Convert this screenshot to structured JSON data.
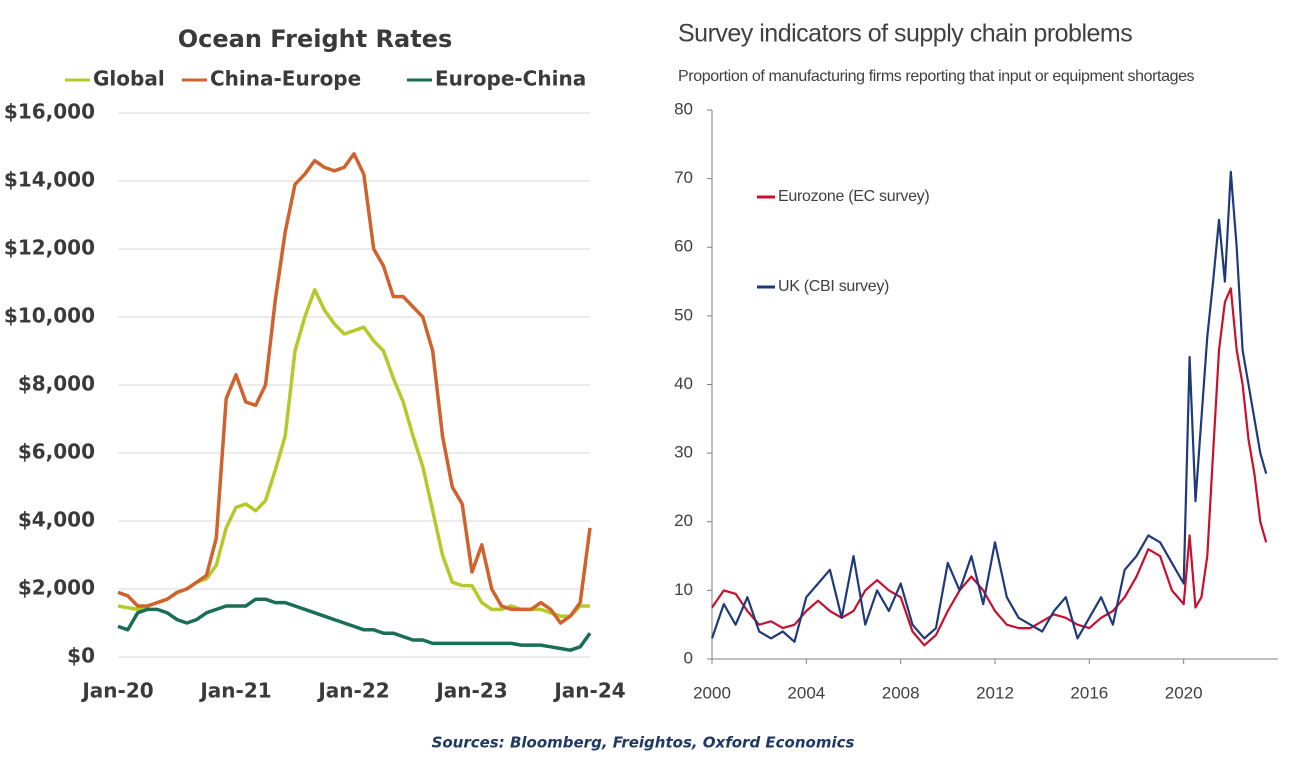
{
  "chart_data": [
    {
      "type": "line",
      "title": "Ocean Freight Rates",
      "x": [
        "2020-01",
        "2020-02",
        "2020-03",
        "2020-04",
        "2020-05",
        "2020-06",
        "2020-07",
        "2020-08",
        "2020-09",
        "2020-10",
        "2020-11",
        "2020-12",
        "2021-01",
        "2021-02",
        "2021-03",
        "2021-04",
        "2021-05",
        "2021-06",
        "2021-07",
        "2021-08",
        "2021-09",
        "2021-10",
        "2021-11",
        "2021-12",
        "2022-01",
        "2022-02",
        "2022-03",
        "2022-04",
        "2022-05",
        "2022-06",
        "2022-07",
        "2022-08",
        "2022-09",
        "2022-10",
        "2022-11",
        "2022-12",
        "2023-01",
        "2023-02",
        "2023-03",
        "2023-04",
        "2023-05",
        "2023-06",
        "2023-07",
        "2023-08",
        "2023-09",
        "2023-10",
        "2023-11",
        "2023-12",
        "2024-01"
      ],
      "series": [
        {
          "name": "Global",
          "color": "#b5c92a",
          "values": [
            1500,
            1450,
            1400,
            1500,
            1600,
            1700,
            1900,
            2000,
            2200,
            2300,
            2700,
            3800,
            4400,
            4500,
            4300,
            4600,
            5500,
            6500,
            9000,
            10000,
            10800,
            10200,
            9800,
            9500,
            9600,
            9700,
            9300,
            9000,
            8200,
            7500,
            6500,
            5600,
            4300,
            3000,
            2200,
            2100,
            2100,
            1600,
            1400,
            1400,
            1500,
            1400,
            1400,
            1400,
            1300,
            1200,
            1200,
            1500,
            1500
          ]
        },
        {
          "name": "China-Europe",
          "color": "#d0632d",
          "values": [
            1900,
            1800,
            1500,
            1500,
            1600,
            1700,
            1900,
            2000,
            2200,
            2400,
            3500,
            7600,
            8300,
            7500,
            7400,
            8000,
            10500,
            12500,
            13900,
            14200,
            14600,
            14400,
            14300,
            14400,
            14800,
            14200,
            12000,
            11500,
            10600,
            10600,
            10300,
            10000,
            9000,
            6500,
            5000,
            4500,
            2500,
            3300,
            2000,
            1500,
            1400,
            1400,
            1400,
            1600,
            1400,
            1000,
            1200,
            1600,
            3800
          ]
        },
        {
          "name": "Europe-China",
          "color": "#1a6e55",
          "values": [
            900,
            800,
            1300,
            1400,
            1400,
            1300,
            1100,
            1000,
            1100,
            1300,
            1400,
            1500,
            1500,
            1500,
            1700,
            1700,
            1600,
            1600,
            1500,
            1400,
            1300,
            1200,
            1100,
            1000,
            900,
            800,
            800,
            700,
            700,
            600,
            500,
            500,
            400,
            400,
            400,
            400,
            400,
            400,
            400,
            400,
            400,
            350,
            350,
            350,
            300,
            250,
            200,
            300,
            700
          ]
        }
      ],
      "ylim": [
        0,
        16000
      ],
      "yticks": [
        {
          "value": 0,
          "label": "$0"
        },
        {
          "value": 2000,
          "label": "$2,000"
        },
        {
          "value": 4000,
          "label": "$4,000"
        },
        {
          "value": 6000,
          "label": "$6,000"
        },
        {
          "value": 8000,
          "label": "$8,000"
        },
        {
          "value": 10000,
          "label": "$10,000"
        },
        {
          "value": 12000,
          "label": "$12,000"
        },
        {
          "value": 14000,
          "label": "$14,000"
        },
        {
          "value": 16000,
          "label": "$16,000"
        }
      ],
      "xticks": [
        {
          "value": "2020-01",
          "label": "Jan-20"
        },
        {
          "value": "2021-01",
          "label": "Jan-21"
        },
        {
          "value": "2022-01",
          "label": "Jan-22"
        },
        {
          "value": "2023-01",
          "label": "Jan-23"
        },
        {
          "value": "2024-01",
          "label": "Jan-24"
        }
      ],
      "grid": true,
      "legend": "top"
    },
    {
      "type": "line",
      "title": "Survey indicators of supply chain problems",
      "subtitle": "Proportion of manufacturing firms reporting that input or equipment shortages",
      "x": [
        2000,
        2000.5,
        2001,
        2001.5,
        2002,
        2002.5,
        2003,
        2003.5,
        2004,
        2004.5,
        2005,
        2005.5,
        2006,
        2006.5,
        2007,
        2007.5,
        2008,
        2008.5,
        2009,
        2009.5,
        2010,
        2010.5,
        2011,
        2011.5,
        2012,
        2012.5,
        2013,
        2013.5,
        2014,
        2014.5,
        2015,
        2015.5,
        2016,
        2016.5,
        2017,
        2017.5,
        2018,
        2018.5,
        2019,
        2019.5,
        2020,
        2020.25,
        2020.5,
        2020.75,
        2021,
        2021.25,
        2021.5,
        2021.75,
        2022,
        2022.25,
        2022.5,
        2022.75,
        2023,
        2023.25,
        2023.5
      ],
      "series": [
        {
          "name": "Eurozone (EC survey)",
          "color": "#c8102e",
          "values": [
            7.5,
            10,
            9.5,
            7,
            5,
            5.5,
            4.5,
            5,
            7,
            8.5,
            7,
            6,
            7,
            10,
            11.5,
            10,
            9,
            4,
            2,
            3.5,
            7,
            10,
            12,
            10,
            7,
            5,
            4.5,
            4.5,
            5.5,
            6.5,
            6,
            5,
            4.5,
            6,
            7,
            9,
            12,
            16,
            15,
            10,
            8,
            18,
            7.5,
            9,
            15,
            30,
            45,
            52,
            54,
            45,
            40,
            32,
            27,
            20,
            17
          ]
        },
        {
          "name": "UK (CBI survey)",
          "color": "#1f3a7a",
          "values": [
            3,
            8,
            5,
            9,
            4,
            3,
            4,
            2.5,
            9,
            11,
            13,
            6,
            15,
            5,
            10,
            7,
            11,
            5,
            3,
            4.5,
            14,
            10,
            15,
            8,
            17,
            9,
            6,
            5,
            4,
            7,
            9,
            3,
            6,
            9,
            5,
            13,
            15,
            18,
            17,
            14,
            11,
            44,
            23,
            35,
            47,
            55,
            64,
            55,
            71,
            60,
            45,
            40,
            35,
            30,
            27
          ]
        }
      ],
      "xlim": [
        2000,
        2024
      ],
      "xticks": [
        2000,
        2004,
        2008,
        2012,
        2016,
        2020
      ],
      "ylim": [
        0,
        80
      ],
      "yticks": [
        0,
        10,
        20,
        30,
        40,
        50,
        60,
        70,
        80
      ],
      "grid": false,
      "legend": "upper left"
    }
  ],
  "source": "Sources: Bloomberg, Freightos, Oxford Economics"
}
